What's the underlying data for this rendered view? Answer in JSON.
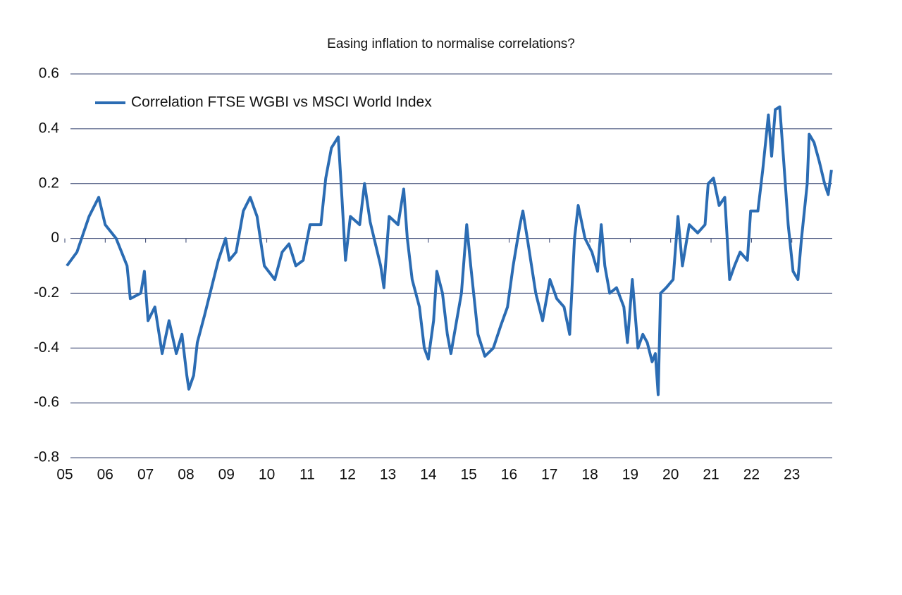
{
  "chart_data": {
    "type": "line",
    "title": "Easing inflation to normalise correlations?",
    "series": [
      {
        "name": "Correlation FTSE WGBI vs MSCI World Index",
        "color": "#2b6cb3",
        "x": [
          5.05,
          5.3,
          5.6,
          5.84,
          6.0,
          6.27,
          6.54,
          6.62,
          6.88,
          6.97,
          7.06,
          7.23,
          7.41,
          7.58,
          7.76,
          7.9,
          8.02,
          8.07,
          8.19,
          8.28,
          8.46,
          8.63,
          8.8,
          8.98,
          9.07,
          9.24,
          9.42,
          9.59,
          9.76,
          9.94,
          10.2,
          10.38,
          10.55,
          10.72,
          10.9,
          11.07,
          11.34,
          11.46,
          11.6,
          11.77,
          11.86,
          11.95,
          12.07,
          12.3,
          12.42,
          12.56,
          12.82,
          12.9,
          13.03,
          13.25,
          13.39,
          13.48,
          13.6,
          13.78,
          13.9,
          14.0,
          14.13,
          14.21,
          14.35,
          14.47,
          14.56,
          14.7,
          14.82,
          14.95,
          15.05,
          15.23,
          15.4,
          15.61,
          15.79,
          15.96,
          16.1,
          16.27,
          16.34,
          16.45,
          16.66,
          16.83,
          17.01,
          17.18,
          17.36,
          17.5,
          17.62,
          17.71,
          17.88,
          18.05,
          18.19,
          18.28,
          18.37,
          18.49,
          18.66,
          18.84,
          18.93,
          19.05,
          19.19,
          19.31,
          19.42,
          19.54,
          19.62,
          19.69,
          19.75,
          19.89,
          20.06,
          20.18,
          20.29,
          20.46,
          20.67,
          20.85,
          20.93,
          21.06,
          21.2,
          21.34,
          21.46,
          21.58,
          21.72,
          21.9,
          21.98,
          22.16,
          22.28,
          22.42,
          22.5,
          22.59,
          22.7,
          22.8,
          22.91,
          23.03,
          23.15,
          23.24,
          23.38,
          23.43,
          23.55,
          23.68,
          23.81,
          23.9,
          23.98
        ],
        "values": [
          -0.1,
          -0.05,
          0.08,
          0.15,
          0.05,
          0.0,
          -0.1,
          -0.22,
          -0.2,
          -0.12,
          -0.3,
          -0.25,
          -0.42,
          -0.3,
          -0.42,
          -0.35,
          -0.5,
          -0.55,
          -0.5,
          -0.38,
          -0.28,
          -0.18,
          -0.08,
          0.0,
          -0.08,
          -0.05,
          0.1,
          0.15,
          0.08,
          -0.1,
          -0.15,
          -0.05,
          -0.02,
          -0.1,
          -0.08,
          0.05,
          0.05,
          0.22,
          0.33,
          0.37,
          0.15,
          -0.08,
          0.08,
          0.05,
          0.2,
          0.06,
          -0.1,
          -0.18,
          0.08,
          0.05,
          0.18,
          0.0,
          -0.15,
          -0.25,
          -0.4,
          -0.44,
          -0.3,
          -0.12,
          -0.2,
          -0.35,
          -0.42,
          -0.3,
          -0.2,
          0.05,
          -0.1,
          -0.35,
          -0.43,
          -0.4,
          -0.32,
          -0.25,
          -0.1,
          0.05,
          0.1,
          0.0,
          -0.2,
          -0.3,
          -0.15,
          -0.22,
          -0.25,
          -0.35,
          0.0,
          0.12,
          0.0,
          -0.05,
          -0.12,
          0.05,
          -0.1,
          -0.2,
          -0.18,
          -0.25,
          -0.38,
          -0.15,
          -0.4,
          -0.35,
          -0.38,
          -0.45,
          -0.42,
          -0.57,
          -0.2,
          -0.18,
          -0.15,
          0.08,
          -0.1,
          0.05,
          0.02,
          0.05,
          0.2,
          0.22,
          0.12,
          0.15,
          -0.15,
          -0.1,
          -0.05,
          -0.08,
          0.1,
          0.1,
          0.25,
          0.45,
          0.3,
          0.47,
          0.48,
          0.28,
          0.05,
          -0.12,
          -0.15,
          0.0,
          0.2,
          0.38,
          0.35,
          0.28,
          0.2,
          0.16,
          0.25
        ]
      }
    ],
    "xlim": [
      5,
      24
    ],
    "xticks": [
      {
        "value": 5,
        "label": "05"
      },
      {
        "value": 6,
        "label": "06"
      },
      {
        "value": 7,
        "label": "07"
      },
      {
        "value": 8,
        "label": "08"
      },
      {
        "value": 9,
        "label": "09"
      },
      10,
      11,
      12,
      13,
      14,
      15,
      16,
      17,
      18,
      19,
      20,
      21,
      22,
      23
    ],
    "ylim": [
      -0.8,
      0.6
    ],
    "yticks": [
      -0.8,
      -0.6,
      -0.4,
      -0.2,
      0,
      0.2,
      0.4,
      0.6
    ],
    "grid": true
  }
}
